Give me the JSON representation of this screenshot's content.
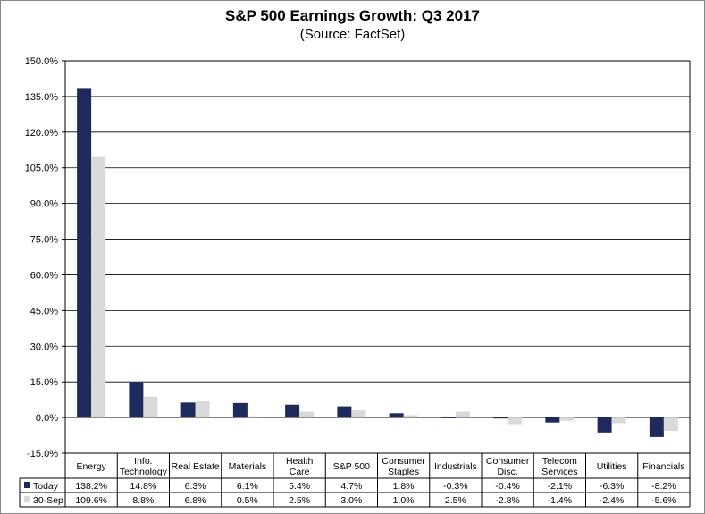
{
  "chart_data": {
    "type": "bar",
    "title": "S&P 500 Earnings Growth: Q3 2017",
    "subtitle": "(Source: FactSet)",
    "categories": [
      [
        "Energy"
      ],
      [
        "Info.",
        "Technology"
      ],
      [
        "Real Estate"
      ],
      [
        "Materials"
      ],
      [
        "Health",
        "Care"
      ],
      [
        "S&P 500"
      ],
      [
        "Consumer",
        "Staples"
      ],
      [
        "Industrials"
      ],
      [
        "Consumer",
        "Disc."
      ],
      [
        "Telecom",
        "Services"
      ],
      [
        "Utilities"
      ],
      [
        "Financials"
      ]
    ],
    "series": [
      {
        "name": "Today",
        "color": "#1f2a5c",
        "values": [
          138.2,
          14.8,
          6.3,
          6.1,
          5.4,
          4.7,
          1.8,
          -0.3,
          -0.4,
          -2.1,
          -6.3,
          -8.2
        ]
      },
      {
        "name": "30-Sep",
        "color": "#d9d9d9",
        "values": [
          109.6,
          8.8,
          6.8,
          0.5,
          2.5,
          3.0,
          1.0,
          2.5,
          -2.8,
          -1.4,
          -2.4,
          -5.6
        ]
      }
    ],
    "ylim": [
      -15,
      150
    ],
    "yticks": [
      150,
      135,
      120,
      105,
      90,
      75,
      60,
      45,
      30,
      15,
      0,
      -15
    ],
    "grid": true,
    "legend": "data-table-left"
  }
}
